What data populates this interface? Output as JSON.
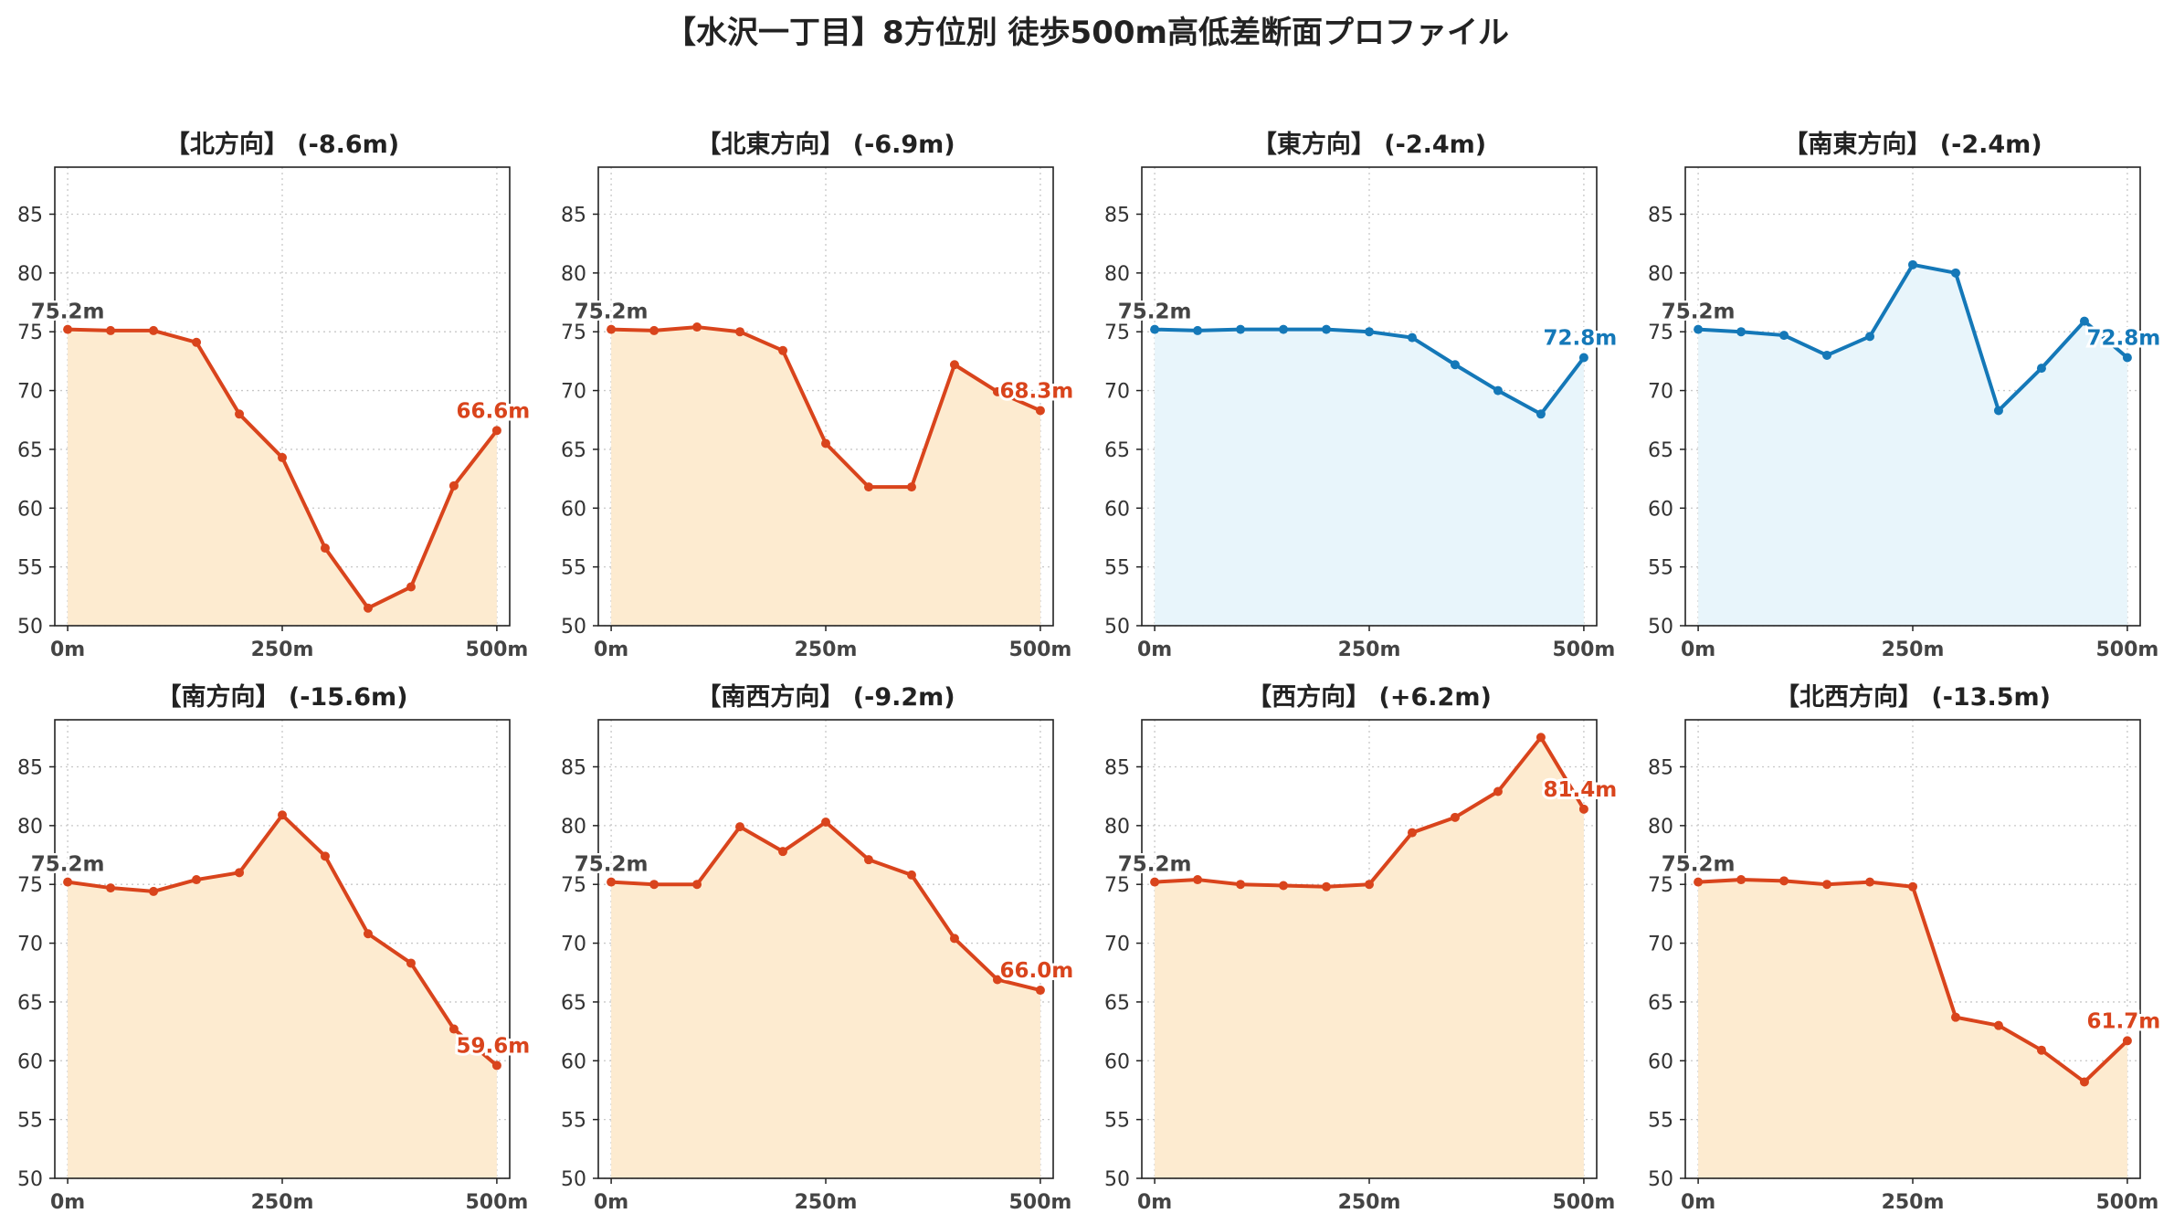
{
  "title": "【水沢一丁目】8方位別 徒歩500m高低差断面プロファイル",
  "colors": {
    "down": "#d9441c",
    "up": "#1478b8",
    "down_fill": "#fdebd0",
    "up_fill": "#e8f5fb",
    "start_label": "#444444"
  },
  "axis": {
    "xlim": [
      -15,
      515
    ],
    "ylim": [
      50,
      89
    ],
    "x_ticks": [
      0,
      250,
      500
    ],
    "x_tick_labels": [
      "0m",
      "250m",
      "500m"
    ],
    "y_ticks": [
      50,
      55,
      60,
      65,
      70,
      75,
      80,
      85
    ],
    "y_tick_labels": [
      "50",
      "55",
      "60",
      "65",
      "70",
      "75",
      "80",
      "85"
    ],
    "grid": true
  },
  "chart_data": [
    {
      "type": "area",
      "title": "【北方向】 (-8.6m)",
      "trend": "down",
      "x": [
        0,
        50,
        100,
        150,
        200,
        250,
        300,
        350,
        400,
        450,
        500
      ],
      "y": [
        75.2,
        75.1,
        75.1,
        74.1,
        68.0,
        64.3,
        56.6,
        51.5,
        53.3,
        61.9,
        66.6
      ],
      "start_label": "75.2m",
      "end_label": "66.6m"
    },
    {
      "type": "area",
      "title": "【北東方向】 (-6.9m)",
      "trend": "down",
      "x": [
        0,
        50,
        100,
        150,
        200,
        250,
        300,
        350,
        400,
        450,
        500
      ],
      "y": [
        75.2,
        75.1,
        75.4,
        75.0,
        73.4,
        65.5,
        61.8,
        61.8,
        72.2,
        69.9,
        68.3
      ],
      "start_label": "75.2m",
      "end_label": "68.3m"
    },
    {
      "type": "area",
      "title": "【東方向】 (-2.4m)",
      "trend": "up",
      "x": [
        0,
        50,
        100,
        150,
        200,
        250,
        300,
        350,
        400,
        450,
        500
      ],
      "y": [
        75.2,
        75.1,
        75.2,
        75.2,
        75.2,
        75.0,
        74.5,
        72.2,
        70.0,
        68.0,
        72.8
      ],
      "start_label": "75.2m",
      "end_label": "72.8m"
    },
    {
      "type": "area",
      "title": "【南東方向】 (-2.4m)",
      "trend": "up",
      "x": [
        0,
        50,
        100,
        150,
        200,
        250,
        300,
        350,
        400,
        450,
        500
      ],
      "y": [
        75.2,
        75.0,
        74.7,
        73.0,
        74.6,
        80.7,
        80.0,
        68.3,
        71.9,
        75.9,
        72.8
      ],
      "start_label": "75.2m",
      "end_label": "72.8m"
    },
    {
      "type": "area",
      "title": "【南方向】 (-15.6m)",
      "trend": "down",
      "x": [
        0,
        50,
        100,
        150,
        200,
        250,
        300,
        350,
        400,
        450,
        500
      ],
      "y": [
        75.2,
        74.7,
        74.4,
        75.4,
        76.0,
        80.9,
        77.4,
        70.8,
        68.3,
        62.7,
        59.6
      ],
      "start_label": "75.2m",
      "end_label": "59.6m"
    },
    {
      "type": "area",
      "title": "【南西方向】 (-9.2m)",
      "trend": "down",
      "x": [
        0,
        50,
        100,
        150,
        200,
        250,
        300,
        350,
        400,
        450,
        500
      ],
      "y": [
        75.2,
        75.0,
        75.0,
        79.9,
        77.8,
        80.3,
        77.1,
        75.8,
        70.4,
        66.9,
        66.0
      ],
      "start_label": "75.2m",
      "end_label": "66.0m"
    },
    {
      "type": "area",
      "title": "【西方向】 (+6.2m)",
      "trend": "down",
      "x": [
        0,
        50,
        100,
        150,
        200,
        250,
        300,
        350,
        400,
        450,
        500
      ],
      "y": [
        75.2,
        75.4,
        75.0,
        74.9,
        74.8,
        75.0,
        79.4,
        80.7,
        82.9,
        87.5,
        81.4
      ],
      "start_label": "75.2m",
      "end_label": "81.4m"
    },
    {
      "type": "area",
      "title": "【北西方向】 (-13.5m)",
      "trend": "down",
      "x": [
        0,
        50,
        100,
        150,
        200,
        250,
        300,
        350,
        400,
        450,
        500
      ],
      "y": [
        75.2,
        75.4,
        75.3,
        75.0,
        75.2,
        74.8,
        63.7,
        63.0,
        60.9,
        58.2,
        61.7
      ],
      "start_label": "75.2m",
      "end_label": "61.7m"
    }
  ]
}
